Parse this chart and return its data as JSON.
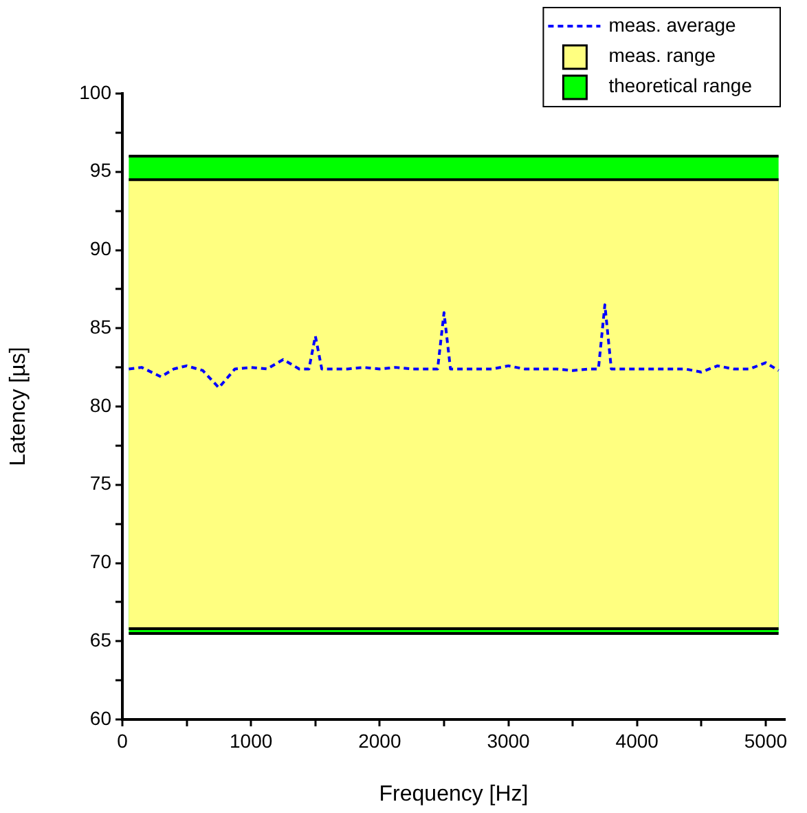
{
  "chart_data": {
    "type": "line",
    "xlabel": "Frequency [Hz]",
    "ylabel": "Latency [µs]",
    "xlim": [
      0,
      5150
    ],
    "ylim": [
      60,
      100
    ],
    "xticks": [
      0,
      {
        "value": 500,
        "label": null
      },
      1000,
      {
        "value": 1500,
        "label": null
      },
      2000,
      {
        "value": 2500,
        "label": null
      },
      3000,
      {
        "value": 3500,
        "label": null
      },
      4000,
      {
        "value": 4500,
        "label": null
      },
      5000
    ],
    "yticks": [
      60,
      {
        "value": 62.5,
        "label": null
      },
      65,
      {
        "value": 67.5,
        "label": null
      },
      70,
      {
        "value": 72.5,
        "label": null
      },
      75,
      {
        "value": 77.5,
        "label": null
      },
      80,
      {
        "value": 82.5,
        "label": null
      },
      85,
      {
        "value": 87.5,
        "label": null
      },
      90,
      {
        "value": 92.5,
        "label": null
      },
      95,
      {
        "value": 97.5,
        "label": null
      },
      100
    ],
    "grid": false,
    "legend": "top right",
    "marker": "none",
    "line_style": "dashed",
    "series": [
      {
        "name": "meas. average",
        "color": "#0000ff",
        "x": [
          50,
          150,
          300,
          400,
          500,
          625,
          750,
          875,
          1000,
          1125,
          1250,
          1375,
          1450,
          1500,
          1550,
          1625,
          1750,
          1875,
          2000,
          2125,
          2250,
          2375,
          2450,
          2500,
          2550,
          2625,
          2750,
          2875,
          3000,
          3125,
          3250,
          3375,
          3500,
          3625,
          3700,
          3750,
          3800,
          3875,
          4000,
          4125,
          4250,
          4375,
          4500,
          4625,
          4750,
          4875,
          5000,
          5100
        ],
        "values": [
          82.4,
          82.5,
          81.9,
          82.4,
          82.6,
          82.3,
          81.2,
          82.4,
          82.5,
          82.4,
          83.0,
          82.4,
          82.4,
          84.5,
          82.4,
          82.4,
          82.4,
          82.5,
          82.4,
          82.5,
          82.4,
          82.4,
          82.4,
          86.0,
          82.4,
          82.4,
          82.4,
          82.4,
          82.6,
          82.4,
          82.4,
          82.4,
          82.3,
          82.4,
          82.4,
          86.5,
          82.4,
          82.4,
          82.4,
          82.4,
          82.4,
          82.4,
          82.2,
          82.6,
          82.4,
          82.4,
          82.8,
          82.3
        ]
      }
    ],
    "bands": [
      {
        "axis": "y",
        "from": 65.5,
        "to": 96,
        "label": "theoretical range",
        "color": "#00ff00"
      },
      {
        "axis": "y",
        "from": 65.8,
        "to": 94.5,
        "label": "meas. range",
        "color": "#ffff80"
      }
    ]
  }
}
